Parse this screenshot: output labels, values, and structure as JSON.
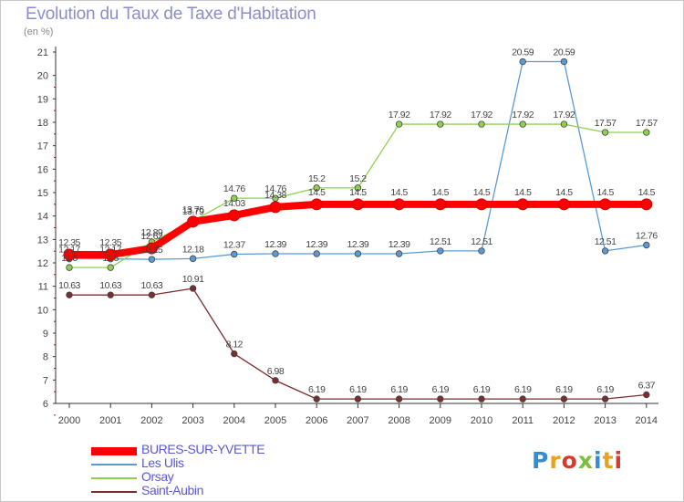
{
  "header": {
    "title": "Evolution du Taux de Taxe d'Habitation",
    "unit": "(en %)"
  },
  "logo": {
    "text": "Proxiti",
    "colors": [
      "#2f8fd1",
      "#e8a21e",
      "#d93a2e",
      "#7bbf3a",
      "#2f8fd1",
      "#e8a21e",
      "#d93a2e"
    ]
  },
  "chart_data": {
    "type": "line",
    "title": "Evolution du Taux de Taxe d'Habitation",
    "ylabel": "(en %)",
    "x": [
      "2000",
      "2001",
      "2002",
      "2003",
      "2004",
      "2005",
      "2006",
      "2007",
      "2008",
      "2009",
      "2010",
      "2011",
      "2012",
      "2013",
      "2014"
    ],
    "ylim": [
      6,
      21
    ],
    "yticks": [
      6,
      7,
      8,
      9,
      10,
      11,
      12,
      13,
      14,
      15,
      16,
      17,
      18,
      19,
      20,
      21
    ],
    "grid": false,
    "legend_position": "bottom-left",
    "series": [
      {
        "name": "BURES-SUR-YVETTE",
        "color": "#ff0000",
        "bold": true,
        "values": [
          12.35,
          12.35,
          12.62,
          13.76,
          14.03,
          14.38,
          14.5,
          14.5,
          14.5,
          14.5,
          14.5,
          14.5,
          14.5,
          14.5,
          14.5
        ],
        "labels": [
          "12.35",
          "12.35",
          "12.62",
          "13.76",
          "14.03",
          "14.38",
          "14.5",
          "14.5",
          "14.5",
          "14.5",
          "14.5",
          "14.5",
          "14.5",
          "14.5",
          "14.5"
        ]
      },
      {
        "name": "Les Ulis",
        "color": "#5b9bd5",
        "bold": false,
        "values": [
          12.17,
          12.17,
          12.15,
          12.18,
          12.37,
          12.39,
          12.39,
          12.39,
          12.39,
          12.51,
          12.51,
          20.59,
          20.59,
          12.51,
          12.76
        ],
        "labels": [
          "12.17",
          "12.17",
          "12.15",
          "12.18",
          "12.37",
          "12.39",
          "12.39",
          "12.39",
          "12.39",
          "12.51",
          "12.51",
          "20.59",
          "20.59",
          "12.51",
          "12.76"
        ]
      },
      {
        "name": "Orsay",
        "color": "#8fd14f",
        "bold": false,
        "values": [
          11.8,
          11.8,
          12.89,
          13.79,
          14.76,
          14.76,
          15.2,
          15.2,
          17.92,
          17.92,
          17.92,
          17.92,
          17.92,
          17.57,
          17.57
        ],
        "labels": [
          "11.8",
          "11.8",
          "12.89",
          "13.79",
          "14.76",
          "14.76",
          "15.2",
          "15.2",
          "17.92",
          "17.92",
          "17.92",
          "17.92",
          "17.92",
          "17.57",
          "17.57"
        ]
      },
      {
        "name": "Saint-Aubin",
        "color": "#7a2e2e",
        "bold": false,
        "values": [
          10.63,
          10.63,
          10.63,
          10.91,
          8.12,
          6.98,
          6.19,
          6.19,
          6.19,
          6.19,
          6.19,
          6.19,
          6.19,
          6.19,
          6.37
        ],
        "labels": [
          "10.63",
          "10.63",
          "10.63",
          "10.91",
          "8.12",
          "6.98",
          "6.19",
          "6.19",
          "6.19",
          "6.19",
          "6.19",
          "6.19",
          "6.19",
          "6.19",
          "6.37"
        ]
      }
    ]
  }
}
